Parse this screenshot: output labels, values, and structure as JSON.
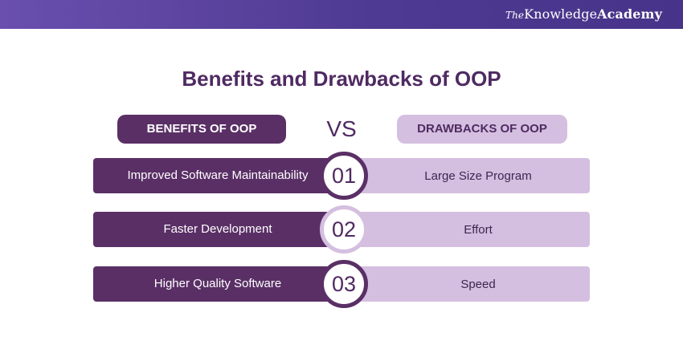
{
  "brand": {
    "prefix": "The",
    "knowledge": "Knowledge",
    "academy": "Academy"
  },
  "title": "Benefits and Drawbacks of OOP",
  "header": {
    "left": "BENEFITS OF OOP",
    "vs": "VS",
    "right": "DRAWBACKS OF OOP"
  },
  "rows": [
    {
      "number": "01",
      "benefit": "Improved Software Maintainability",
      "drawback": "Large Size Program"
    },
    {
      "number": "02",
      "benefit": "Faster Development",
      "drawback": "Effort"
    },
    {
      "number": "03",
      "benefit": "Higher Quality Software",
      "drawback": "Speed"
    }
  ],
  "colors": {
    "primary": "#5a2f66",
    "light": "#d5bfe0",
    "title": "#4f2a62",
    "topbar": "#4e3a92"
  }
}
